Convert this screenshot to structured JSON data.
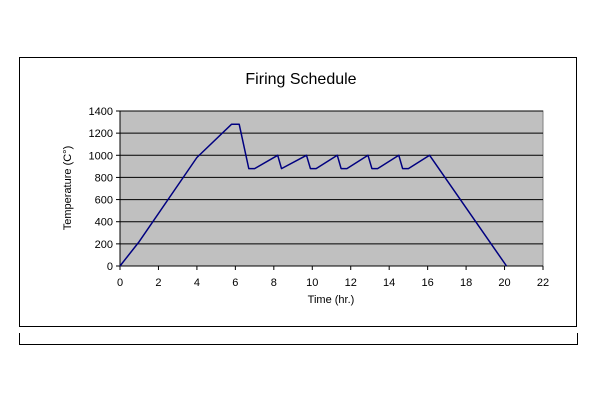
{
  "chart_data": {
    "type": "line",
    "title": "Firing Schedule",
    "xlabel": "Time (hr.)",
    "ylabel": "Temperature (C°)",
    "xlim": [
      0,
      22
    ],
    "ylim": [
      0,
      1400
    ],
    "xticks": [
      0,
      2,
      4,
      6,
      8,
      10,
      12,
      14,
      16,
      18,
      20,
      22
    ],
    "yticks": [
      0,
      200,
      400,
      600,
      800,
      1000,
      1200,
      1400
    ],
    "grid": "horizontal",
    "plot_background": "#c0c0c0",
    "series": [
      {
        "color": "#000080",
        "x": [
          0,
          1,
          4,
          5.8,
          6.2,
          6.7,
          7,
          8.2,
          8.4,
          9.7,
          9.9,
          10.2,
          11.3,
          11.5,
          11.8,
          12.9,
          13.1,
          13.4,
          14.5,
          14.7,
          15,
          16.1,
          20.1
        ],
        "y": [
          0,
          220,
          980,
          1280,
          1280,
          880,
          880,
          1000,
          880,
          1000,
          880,
          880,
          1000,
          880,
          880,
          1000,
          880,
          880,
          1000,
          880,
          880,
          1000,
          0
        ]
      }
    ]
  }
}
